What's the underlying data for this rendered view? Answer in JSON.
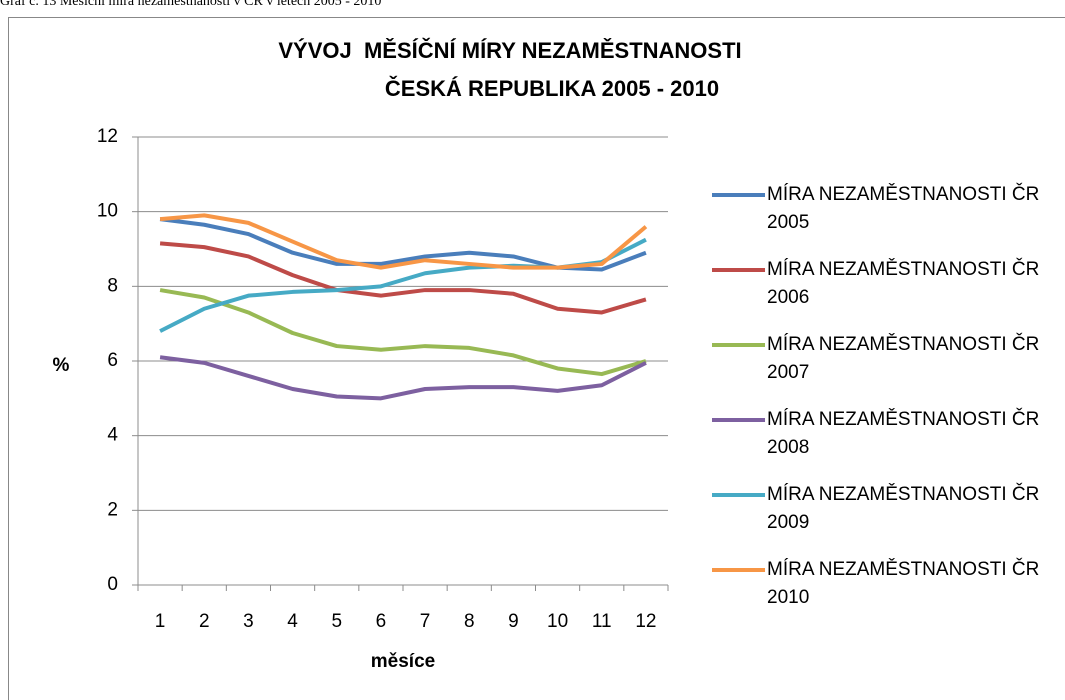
{
  "caption": "Graf č. 13 Měsíční míra nezaměstnanosti v ČR v letech 2005 - 2010",
  "chart_data": {
    "type": "line",
    "title": [
      "VÝVOJ  MĚSÍČNÍ MÍRY NEZAMĚSTNANOSTI",
      "ČESKÁ REPUBLIKA 2005 - 2010"
    ],
    "xlabel": "měsíce",
    "ylabel": "%",
    "categories": [
      "1",
      "2",
      "3",
      "4",
      "5",
      "6",
      "7",
      "8",
      "9",
      "10",
      "11",
      "12"
    ],
    "ylim": [
      0,
      12
    ],
    "yticks": [
      0,
      2,
      4,
      6,
      8,
      10,
      12
    ],
    "grid": true,
    "legend": "right",
    "series": [
      {
        "name": "MÍRA NEZAMĚSTNANOSTI ČR 2005",
        "color": "#4a7ebb",
        "values": [
          9.8,
          9.65,
          9.4,
          8.9,
          8.6,
          8.6,
          8.8,
          8.9,
          8.8,
          8.5,
          8.45,
          8.9
        ]
      },
      {
        "name": "MÍRA NEZAMĚSTNANOSTI ČR 2006",
        "color": "#be4b48",
        "values": [
          9.15,
          9.05,
          8.8,
          8.3,
          7.9,
          7.75,
          7.9,
          7.9,
          7.8,
          7.4,
          7.3,
          7.65
        ]
      },
      {
        "name": "MÍRA NEZAMĚSTNANOSTI ČR 2007",
        "color": "#98b954",
        "values": [
          7.9,
          7.7,
          7.3,
          6.75,
          6.4,
          6.3,
          6.4,
          6.35,
          6.15,
          5.8,
          5.65,
          6.0
        ]
      },
      {
        "name": "MÍRA NEZAMĚSTNANOSTI ČR 2008",
        "color": "#7d60a0",
        "values": [
          6.1,
          5.95,
          5.6,
          5.25,
          5.05,
          5.0,
          5.25,
          5.3,
          5.3,
          5.2,
          5.35,
          5.95
        ]
      },
      {
        "name": "MÍRA NEZAMĚSTNANOSTI ČR 2009",
        "color": "#46aac5",
        "values": [
          6.8,
          7.4,
          7.75,
          7.85,
          7.9,
          8.0,
          8.35,
          8.5,
          8.55,
          8.5,
          8.65,
          9.25
        ]
      },
      {
        "name": "MÍRA NEZAMĚSTNANOSTI ČR 2010",
        "color": "#f79646",
        "values": [
          9.8,
          9.9,
          9.7,
          9.2,
          8.7,
          8.5,
          8.7,
          8.6,
          8.5,
          8.5,
          8.6,
          9.6
        ]
      }
    ]
  }
}
